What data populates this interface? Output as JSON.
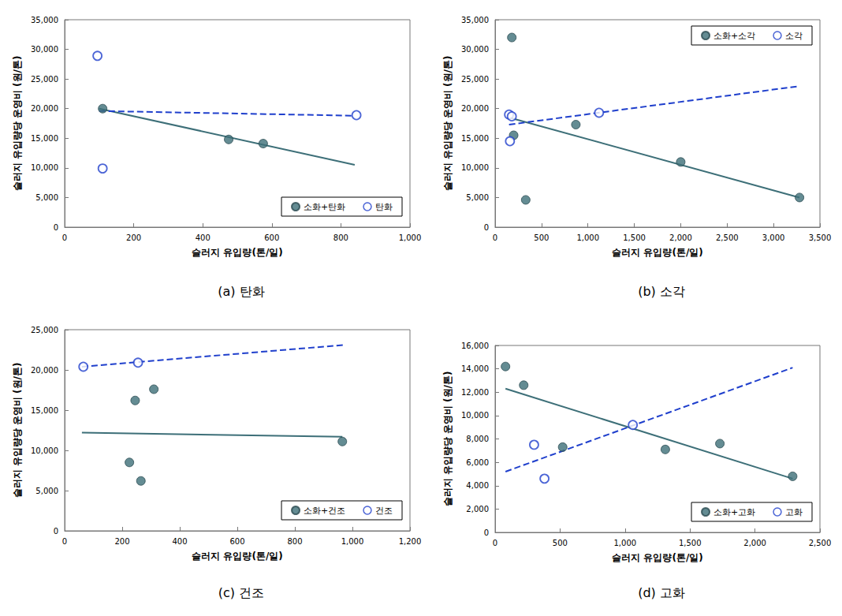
{
  "chart_data": [
    {
      "type": "scatter",
      "title": "(a) 탄화",
      "x_label": "슬러지 유입량(톤/일)",
      "y_label": "슬러지 유입량당 운영비 (원/톤)",
      "xlim": [
        0,
        1000
      ],
      "xticks": [
        0,
        200,
        400,
        600,
        800,
        {
          "value": 1000,
          "label": "1,000"
        }
      ],
      "ylim": [
        0,
        35000
      ],
      "yticks": [
        0,
        {
          "value": 5000,
          "label": "5,000"
        },
        {
          "value": 10000,
          "label": "10,000"
        },
        {
          "value": 15000,
          "label": "15,000"
        },
        {
          "value": 20000,
          "label": "20,000"
        },
        {
          "value": 25000,
          "label": "25,000"
        },
        {
          "value": 30000,
          "label": "30,000"
        },
        {
          "value": 35000,
          "label": "35,000"
        }
      ],
      "grid": false,
      "legend": "bottom right",
      "series": [
        {
          "name": "소화+탄화",
          "type": "scatter",
          "marker": "circle",
          "color": "#3d6f78",
          "x": [
            110,
            475,
            575
          ],
          "values": [
            20000,
            14800,
            14100
          ],
          "trend": {
            "x": [
              100,
              840
            ],
            "values": [
              20000,
              10500
            ],
            "line_style": "solid"
          }
        },
        {
          "name": "탄화",
          "type": "scatter",
          "marker": "open circle",
          "color": "#1f3fcc",
          "x": [
            95,
            110,
            845
          ],
          "values": [
            28900,
            9900,
            18900
          ],
          "trend": {
            "x": [
              100,
              840
            ],
            "values": [
              19600,
              18800
            ],
            "line_style": "dashed"
          }
        }
      ]
    },
    {
      "type": "scatter",
      "title": "(b) 소각",
      "x_label": "슬러지 유입량(톤/일)",
      "y_label": "슬러지 유입량당 운영비 (원/톤)",
      "xlim": [
        0,
        3500
      ],
      "xticks": [
        0,
        500,
        {
          "value": 1000,
          "label": "1,000"
        },
        {
          "value": 1500,
          "label": "1,500"
        },
        {
          "value": 2000,
          "label": "2,000"
        },
        {
          "value": 2500,
          "label": "2,500"
        },
        {
          "value": 3000,
          "label": "3,000"
        },
        {
          "value": 3500,
          "label": "3,500"
        }
      ],
      "ylim": [
        0,
        35000
      ],
      "yticks": [
        0,
        {
          "value": 5000,
          "label": "5,000"
        },
        {
          "value": 10000,
          "label": "10,000"
        },
        {
          "value": 15000,
          "label": "15,000"
        },
        {
          "value": 20000,
          "label": "20,000"
        },
        {
          "value": 25000,
          "label": "25,000"
        },
        {
          "value": 30000,
          "label": "30,000"
        },
        {
          "value": 35000,
          "label": "35,000"
        }
      ],
      "grid": false,
      "legend": "top right",
      "series": [
        {
          "name": "소화+소각",
          "type": "scatter",
          "marker": "circle",
          "color": "#3d6f78",
          "x": [
            180,
            200,
            330,
            870,
            2000,
            3280
          ],
          "values": [
            32000,
            15500,
            4600,
            17300,
            11000,
            5000
          ],
          "trend": {
            "x": [
              150,
              3280
            ],
            "values": [
              18500,
              5000
            ],
            "line_style": "solid"
          }
        },
        {
          "name": "소각",
          "type": "scatter",
          "marker": "open circle",
          "color": "#1f3fcc",
          "x": [
            150,
            160,
            180,
            1120
          ],
          "values": [
            19000,
            14500,
            18700,
            19300
          ],
          "trend": {
            "x": [
              150,
              3280
            ],
            "values": [
              17300,
              23800
            ],
            "line_style": "dashed"
          }
        }
      ]
    },
    {
      "type": "scatter",
      "title": "(c) 건조",
      "x_label": "슬러지 유입량(톤/일)",
      "y_label": "슬러지 유입량당 운영비 (원/톤)",
      "xlim": [
        0,
        1200
      ],
      "xticks": [
        0,
        200,
        400,
        600,
        800,
        {
          "value": 1000,
          "label": "1,000"
        },
        {
          "value": 1200,
          "label": "1,200"
        }
      ],
      "ylim": [
        0,
        25000
      ],
      "yticks": [
        0,
        {
          "value": 5000,
          "label": "5,000"
        },
        {
          "value": 10000,
          "label": "10,000"
        },
        {
          "value": 15000,
          "label": "15,000"
        },
        {
          "value": 20000,
          "label": "20,000"
        },
        {
          "value": 25000,
          "label": "25,000"
        }
      ],
      "grid": false,
      "legend": "bottom right",
      "series": [
        {
          "name": "소화+건조",
          "type": "scatter",
          "marker": "circle",
          "color": "#3d6f78",
          "x": [
            225,
            245,
            265,
            310,
            965
          ],
          "values": [
            8500,
            16200,
            6200,
            17600,
            11100
          ],
          "trend": {
            "x": [
              60,
              965
            ],
            "values": [
              12200,
              11700
            ],
            "line_style": "solid"
          }
        },
        {
          "name": "건조",
          "type": "scatter",
          "marker": "open circle",
          "color": "#1f3fcc",
          "x": [
            65,
            255
          ],
          "values": [
            20400,
            20900
          ],
          "trend": {
            "x": [
              60,
              970
            ],
            "values": [
              20400,
              23100
            ],
            "line_style": "dashed"
          }
        }
      ]
    },
    {
      "type": "scatter",
      "title": "(d) 고화",
      "x_label": "슬러지 유입량(톤/일)",
      "y_label": "슬러지 유입량당 운영비 (원/톤)",
      "xlim": [
        0,
        2500
      ],
      "xticks": [
        0,
        500,
        {
          "value": 1000,
          "label": "1,000"
        },
        {
          "value": 1500,
          "label": "1,500"
        },
        {
          "value": 2000,
          "label": "2,000"
        },
        {
          "value": 2500,
          "label": "2,500"
        }
      ],
      "ylim": [
        0,
        16000
      ],
      "yticks": [
        0,
        {
          "value": 2000,
          "label": "2,000"
        },
        {
          "value": 4000,
          "label": "4,000"
        },
        {
          "value": 6000,
          "label": "6,000"
        },
        {
          "value": 8000,
          "label": "8,000"
        },
        {
          "value": 10000,
          "label": "10,000"
        },
        {
          "value": 12000,
          "label": "12,000"
        },
        {
          "value": 14000,
          "label": "14,000"
        },
        {
          "value": 16000,
          "label": "16,000"
        }
      ],
      "grid": false,
      "legend": "bottom right",
      "series": [
        {
          "name": "소화+고화",
          "type": "scatter",
          "marker": "circle",
          "color": "#3d6f78",
          "x": [
            80,
            220,
            520,
            1310,
            1730,
            2290
          ],
          "values": [
            14200,
            12600,
            7300,
            7100,
            7600,
            4800
          ],
          "trend": {
            "x": [
              80,
              2290
            ],
            "values": [
              12300,
              4600
            ],
            "line_style": "solid"
          }
        },
        {
          "name": "고화",
          "type": "scatter",
          "marker": "open circle",
          "color": "#1f3fcc",
          "x": [
            300,
            380,
            1060
          ],
          "values": [
            7500,
            4600,
            9200
          ],
          "trend": {
            "x": [
              80,
              2290
            ],
            "values": [
              5200,
              14100
            ],
            "line_style": "dashed"
          }
        }
      ]
    }
  ]
}
